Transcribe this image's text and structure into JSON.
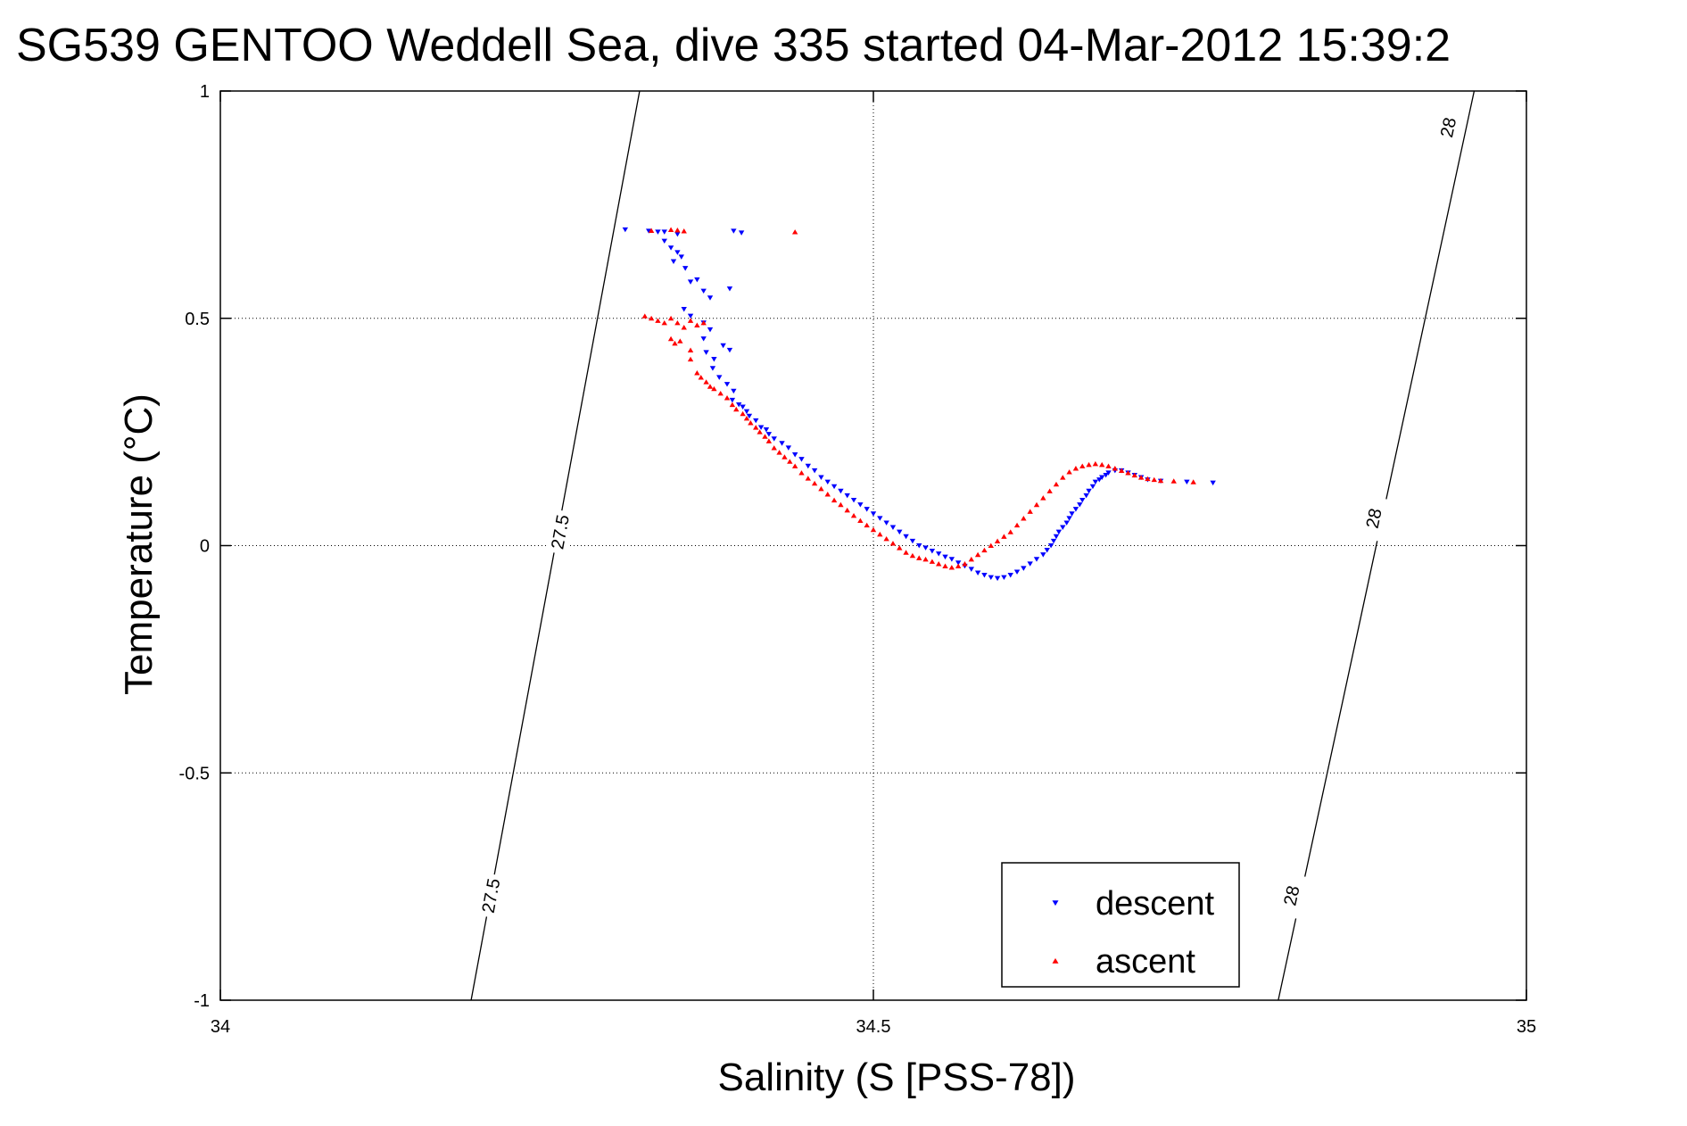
{
  "chart_data": {
    "type": "scatter",
    "title": "SG539 GENTOO Weddell Sea, dive 335 started 04-Mar-2012 15:39:2",
    "xlabel": "Salinity (S [PSS-78])",
    "ylabel": "Temperature (°C)",
    "xlim": [
      34,
      35
    ],
    "ylim": [
      -1,
      1
    ],
    "x_ticks": [
      "34",
      "34.5",
      "35"
    ],
    "y_ticks": [
      "1",
      "0.5",
      "0",
      "-0.5",
      "-1"
    ],
    "x_tick_values": [
      34,
      34.5,
      35
    ],
    "y_tick_values": [
      1,
      0.5,
      0,
      -0.5,
      -1
    ],
    "grid": true,
    "legend_position": "bottom-right",
    "contours": [
      {
        "label": "27.5",
        "points": [
          [
            34.192,
            -1.0
          ],
          [
            34.321,
            1.0
          ]
        ],
        "label_positions": [
          [
            34.207,
            -0.77
          ],
          [
            34.26,
            0.03
          ]
        ]
      },
      {
        "label": "28",
        "points": [
          [
            34.81,
            -1.0
          ],
          [
            34.96,
            1.0
          ]
        ],
        "label_positions": [
          [
            34.82,
            -0.77
          ],
          [
            34.883,
            0.06
          ],
          [
            34.94,
            0.92
          ]
        ]
      }
    ],
    "series": [
      {
        "name": "descent",
        "color": "#0000ff",
        "marker": "triangle-down",
        "points": [
          [
            34.31,
            0.695
          ],
          [
            34.328,
            0.692
          ],
          [
            34.335,
            0.69
          ],
          [
            34.34,
            0.69
          ],
          [
            34.35,
            0.685
          ],
          [
            34.393,
            0.692
          ],
          [
            34.399,
            0.688
          ],
          [
            34.34,
            0.67
          ],
          [
            34.345,
            0.655
          ],
          [
            34.35,
            0.645
          ],
          [
            34.353,
            0.635
          ],
          [
            34.347,
            0.625
          ],
          [
            34.356,
            0.61
          ],
          [
            34.36,
            0.58
          ],
          [
            34.365,
            0.585
          ],
          [
            34.37,
            0.56
          ],
          [
            34.375,
            0.545
          ],
          [
            34.39,
            0.565
          ],
          [
            34.355,
            0.52
          ],
          [
            34.36,
            0.505
          ],
          [
            34.37,
            0.49
          ],
          [
            34.375,
            0.475
          ],
          [
            34.37,
            0.455
          ],
          [
            34.372,
            0.425
          ],
          [
            34.378,
            0.41
          ],
          [
            34.385,
            0.44
          ],
          [
            34.39,
            0.43
          ],
          [
            34.377,
            0.39
          ],
          [
            34.382,
            0.37
          ],
          [
            34.388,
            0.355
          ],
          [
            34.393,
            0.34
          ],
          [
            34.392,
            0.32
          ],
          [
            34.397,
            0.31
          ],
          [
            34.4,
            0.305
          ],
          [
            34.403,
            0.295
          ],
          [
            34.405,
            0.285
          ],
          [
            34.41,
            0.275
          ],
          [
            34.414,
            0.26
          ],
          [
            34.418,
            0.255
          ],
          [
            34.42,
            0.245
          ],
          [
            34.424,
            0.235
          ],
          [
            34.43,
            0.225
          ],
          [
            34.435,
            0.215
          ],
          [
            34.44,
            0.2
          ],
          [
            34.445,
            0.19
          ],
          [
            34.45,
            0.175
          ],
          [
            34.455,
            0.165
          ],
          [
            34.46,
            0.15
          ],
          [
            34.465,
            0.14
          ],
          [
            34.47,
            0.13
          ],
          [
            34.475,
            0.12
          ],
          [
            34.48,
            0.11
          ],
          [
            34.485,
            0.1
          ],
          [
            34.49,
            0.09
          ],
          [
            34.495,
            0.08
          ],
          [
            34.5,
            0.07
          ],
          [
            34.505,
            0.06
          ],
          [
            34.51,
            0.05
          ],
          [
            34.515,
            0.04
          ],
          [
            34.52,
            0.03
          ],
          [
            34.525,
            0.02
          ],
          [
            34.53,
            0.01
          ],
          [
            34.535,
            0.0
          ],
          [
            34.54,
            -0.005
          ],
          [
            34.545,
            -0.012
          ],
          [
            34.55,
            -0.018
          ],
          [
            34.555,
            -0.025
          ],
          [
            34.56,
            -0.03
          ],
          [
            34.565,
            -0.038
          ],
          [
            34.57,
            -0.045
          ],
          [
            34.575,
            -0.052
          ],
          [
            34.58,
            -0.06
          ],
          [
            34.585,
            -0.065
          ],
          [
            34.59,
            -0.07
          ],
          [
            34.595,
            -0.072
          ],
          [
            34.6,
            -0.07
          ],
          [
            34.605,
            -0.065
          ],
          [
            34.61,
            -0.058
          ],
          [
            34.615,
            -0.05
          ],
          [
            34.62,
            -0.04
          ],
          [
            34.625,
            -0.03
          ],
          [
            34.63,
            -0.02
          ],
          [
            34.633,
            -0.01
          ],
          [
            34.636,
            0.0
          ],
          [
            34.638,
            0.01
          ],
          [
            34.64,
            0.02
          ],
          [
            34.642,
            0.03
          ],
          [
            34.645,
            0.04
          ],
          [
            34.648,
            0.05
          ],
          [
            34.65,
            0.06
          ],
          [
            34.652,
            0.07
          ],
          [
            34.655,
            0.08
          ],
          [
            34.658,
            0.09
          ],
          [
            34.66,
            0.1
          ],
          [
            34.663,
            0.11
          ],
          [
            34.665,
            0.12
          ],
          [
            34.668,
            0.13
          ],
          [
            34.67,
            0.14
          ],
          [
            34.673,
            0.145
          ],
          [
            34.675,
            0.15
          ],
          [
            34.678,
            0.155
          ],
          [
            34.68,
            0.16
          ],
          [
            34.685,
            0.165
          ],
          [
            34.69,
            0.165
          ],
          [
            34.695,
            0.16
          ],
          [
            34.7,
            0.155
          ],
          [
            34.705,
            0.15
          ],
          [
            34.71,
            0.145
          ],
          [
            34.72,
            0.142
          ],
          [
            34.74,
            0.14
          ],
          [
            34.76,
            0.138
          ]
        ]
      },
      {
        "name": "ascent",
        "color": "#ff0000",
        "marker": "triangle-up",
        "points": [
          [
            34.33,
            0.693
          ],
          [
            34.345,
            0.695
          ],
          [
            34.35,
            0.694
          ],
          [
            34.355,
            0.692
          ],
          [
            34.44,
            0.69
          ],
          [
            34.325,
            0.505
          ],
          [
            34.33,
            0.5
          ],
          [
            34.335,
            0.495
          ],
          [
            34.34,
            0.49
          ],
          [
            34.345,
            0.5
          ],
          [
            34.35,
            0.49
          ],
          [
            34.355,
            0.48
          ],
          [
            34.36,
            0.495
          ],
          [
            34.365,
            0.485
          ],
          [
            34.37,
            0.49
          ],
          [
            34.345,
            0.455
          ],
          [
            34.348,
            0.445
          ],
          [
            34.352,
            0.45
          ],
          [
            34.36,
            0.43
          ],
          [
            34.36,
            0.41
          ],
          [
            34.365,
            0.38
          ],
          [
            34.368,
            0.37
          ],
          [
            34.372,
            0.36
          ],
          [
            34.375,
            0.35
          ],
          [
            34.378,
            0.345
          ],
          [
            34.383,
            0.335
          ],
          [
            34.388,
            0.325
          ],
          [
            34.392,
            0.31
          ],
          [
            34.395,
            0.3
          ],
          [
            34.4,
            0.29
          ],
          [
            34.403,
            0.28
          ],
          [
            34.406,
            0.27
          ],
          [
            34.41,
            0.26
          ],
          [
            34.413,
            0.25
          ],
          [
            34.417,
            0.24
          ],
          [
            34.42,
            0.23
          ],
          [
            34.424,
            0.215
          ],
          [
            34.428,
            0.205
          ],
          [
            34.432,
            0.195
          ],
          [
            34.436,
            0.185
          ],
          [
            34.44,
            0.175
          ],
          [
            34.445,
            0.16
          ],
          [
            34.45,
            0.148
          ],
          [
            34.455,
            0.137
          ],
          [
            34.46,
            0.125
          ],
          [
            34.465,
            0.113
          ],
          [
            34.47,
            0.1
          ],
          [
            34.475,
            0.09
          ],
          [
            34.48,
            0.078
          ],
          [
            34.485,
            0.066
          ],
          [
            34.49,
            0.055
          ],
          [
            34.495,
            0.045
          ],
          [
            34.5,
            0.035
          ],
          [
            34.505,
            0.025
          ],
          [
            34.51,
            0.015
          ],
          [
            34.515,
            0.005
          ],
          [
            34.52,
            -0.005
          ],
          [
            34.525,
            -0.015
          ],
          [
            34.53,
            -0.022
          ],
          [
            34.535,
            -0.027
          ],
          [
            34.54,
            -0.03
          ],
          [
            34.545,
            -0.035
          ],
          [
            34.55,
            -0.04
          ],
          [
            34.555,
            -0.045
          ],
          [
            34.56,
            -0.048
          ],
          [
            34.565,
            -0.045
          ],
          [
            34.57,
            -0.04
          ],
          [
            34.575,
            -0.03
          ],
          [
            34.58,
            -0.02
          ],
          [
            34.585,
            -0.01
          ],
          [
            34.59,
            0.0
          ],
          [
            34.595,
            0.01
          ],
          [
            34.6,
            0.02
          ],
          [
            34.605,
            0.03
          ],
          [
            34.61,
            0.045
          ],
          [
            34.615,
            0.06
          ],
          [
            34.62,
            0.075
          ],
          [
            34.625,
            0.09
          ],
          [
            34.63,
            0.105
          ],
          [
            34.635,
            0.12
          ],
          [
            34.64,
            0.135
          ],
          [
            34.645,
            0.15
          ],
          [
            34.65,
            0.162
          ],
          [
            34.655,
            0.17
          ],
          [
            34.66,
            0.175
          ],
          [
            34.665,
            0.178
          ],
          [
            34.67,
            0.18
          ],
          [
            34.675,
            0.178
          ],
          [
            34.68,
            0.175
          ],
          [
            34.685,
            0.17
          ],
          [
            34.69,
            0.165
          ],
          [
            34.695,
            0.16
          ],
          [
            34.7,
            0.155
          ],
          [
            34.705,
            0.15
          ],
          [
            34.71,
            0.147
          ],
          [
            34.715,
            0.145
          ],
          [
            34.72,
            0.143
          ],
          [
            34.73,
            0.142
          ],
          [
            34.745,
            0.14
          ]
        ]
      }
    ]
  }
}
